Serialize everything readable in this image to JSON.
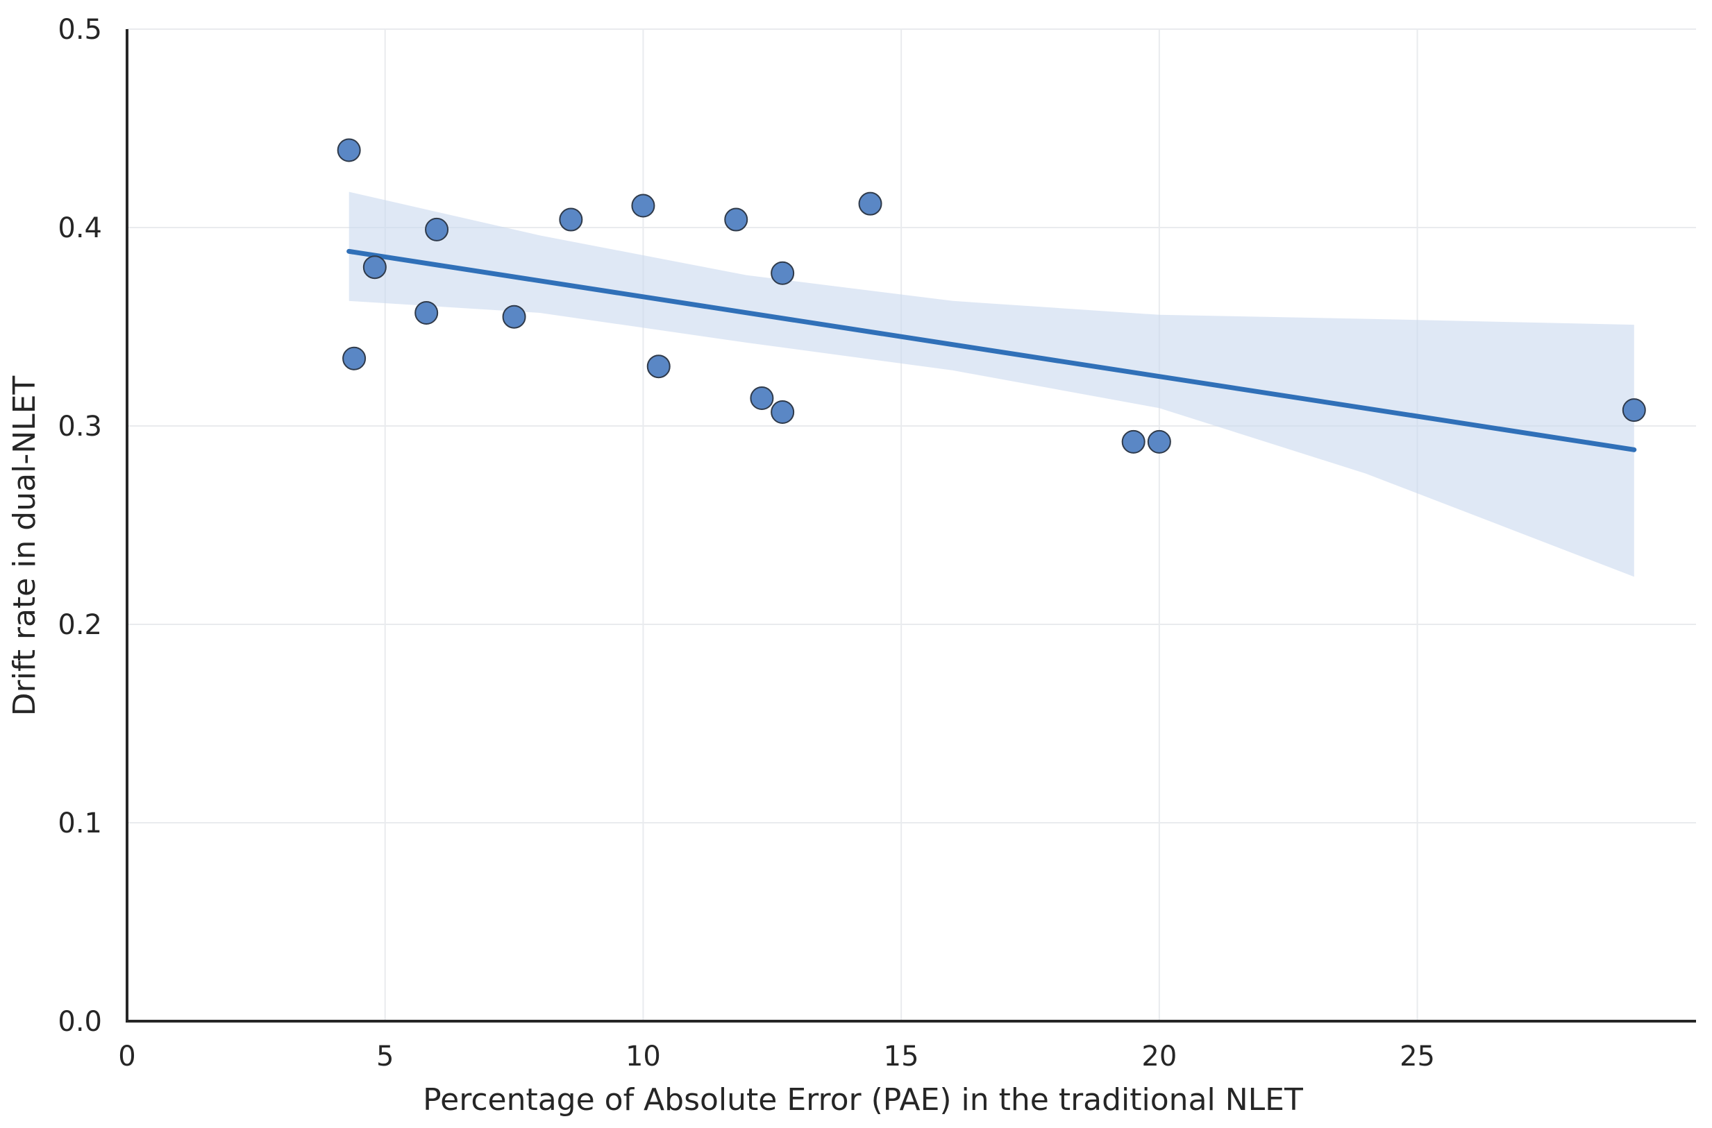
{
  "chart_data": {
    "type": "scatter",
    "title": "",
    "xlabel": "Percentage of Absolute Error (PAE) in the traditional NLET",
    "ylabel": "Drift rate in dual-NLET",
    "xlim": [
      0,
      30.4
    ],
    "ylim": [
      0,
      0.5
    ],
    "grid": true,
    "xticks": [
      0,
      5,
      10,
      15,
      20,
      25
    ],
    "xtick_labels": [
      "0",
      "5",
      "10",
      "15",
      "20",
      "25"
    ],
    "yticks": [
      0.0,
      0.1,
      0.2,
      0.3,
      0.4,
      0.5
    ],
    "ytick_labels": [
      "0.0",
      "0.1",
      "0.2",
      "0.3",
      "0.4",
      "0.5"
    ],
    "points": [
      {
        "x": 4.3,
        "y": 0.439
      },
      {
        "x": 4.4,
        "y": 0.334
      },
      {
        "x": 4.8,
        "y": 0.38
      },
      {
        "x": 5.8,
        "y": 0.357
      },
      {
        "x": 6.0,
        "y": 0.399
      },
      {
        "x": 7.5,
        "y": 0.355
      },
      {
        "x": 8.6,
        "y": 0.404
      },
      {
        "x": 10.0,
        "y": 0.411
      },
      {
        "x": 10.3,
        "y": 0.33
      },
      {
        "x": 11.8,
        "y": 0.404
      },
      {
        "x": 12.3,
        "y": 0.314
      },
      {
        "x": 12.7,
        "y": 0.377
      },
      {
        "x": 12.7,
        "y": 0.307
      },
      {
        "x": 14.4,
        "y": 0.412
      },
      {
        "x": 19.5,
        "y": 0.292
      },
      {
        "x": 20.0,
        "y": 0.292
      },
      {
        "x": 29.2,
        "y": 0.308
      }
    ],
    "regression": {
      "x_start": 4.3,
      "y_start": 0.388,
      "x_end": 29.2,
      "y_end": 0.288
    },
    "confidence_band": [
      {
        "x": 4.3,
        "lower": 0.363,
        "upper": 0.418
      },
      {
        "x": 8.0,
        "lower": 0.357,
        "upper": 0.396
      },
      {
        "x": 12.0,
        "lower": 0.342,
        "upper": 0.376
      },
      {
        "x": 16.0,
        "lower": 0.328,
        "upper": 0.363
      },
      {
        "x": 20.0,
        "lower": 0.309,
        "upper": 0.356
      },
      {
        "x": 24.0,
        "lower": 0.276,
        "upper": 0.354
      },
      {
        "x": 29.2,
        "lower": 0.224,
        "upper": 0.351
      }
    ],
    "colors": {
      "point_fill": "#5a87c5",
      "point_edge": "#2f3a4a",
      "line": "#3070b8",
      "band": "#c9d9ee",
      "grid": "#e9ebee",
      "axis": "#262626"
    }
  }
}
